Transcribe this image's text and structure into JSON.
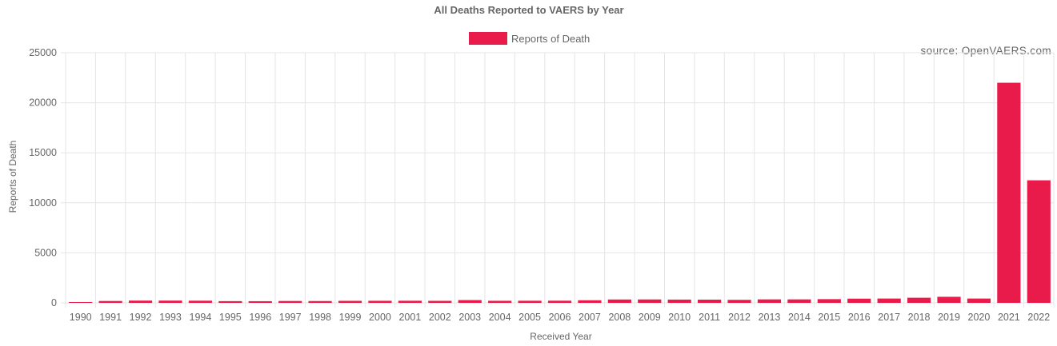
{
  "source_note": "source: OpenVAERS.com",
  "colors": {
    "bar": "#e91b4a",
    "grid": "#e5e5e5",
    "axis_text": "#666666",
    "title_text": "#666666"
  },
  "chart_data": {
    "type": "bar",
    "title": "All Deaths Reported to VAERS by Year",
    "xlabel": "Received Year",
    "ylabel": "Reports of Death",
    "ylim": [
      0,
      25000
    ],
    "yticks": [
      0,
      5000,
      10000,
      15000,
      20000,
      25000
    ],
    "grid": true,
    "legend_position": "top",
    "series": [
      {
        "name": "Reports of Death",
        "color": "#e91b4a",
        "values": [
          80,
          185,
          225,
          225,
          215,
          170,
          165,
          185,
          180,
          200,
          205,
          210,
          200,
          275,
          205,
          210,
          215,
          260,
          335,
          340,
          325,
          320,
          300,
          345,
          345,
          370,
          420,
          430,
          510,
          605,
          430,
          22000,
          12250
        ]
      }
    ],
    "categories": [
      "1990",
      "1991",
      "1992",
      "1993",
      "1994",
      "1995",
      "1996",
      "1997",
      "1998",
      "1999",
      "2000",
      "2001",
      "2002",
      "2003",
      "2004",
      "2005",
      "2006",
      "2007",
      "2008",
      "2009",
      "2010",
      "2011",
      "2012",
      "2013",
      "2014",
      "2015",
      "2016",
      "2017",
      "2018",
      "2019",
      "2020",
      "2021",
      "2022"
    ]
  }
}
